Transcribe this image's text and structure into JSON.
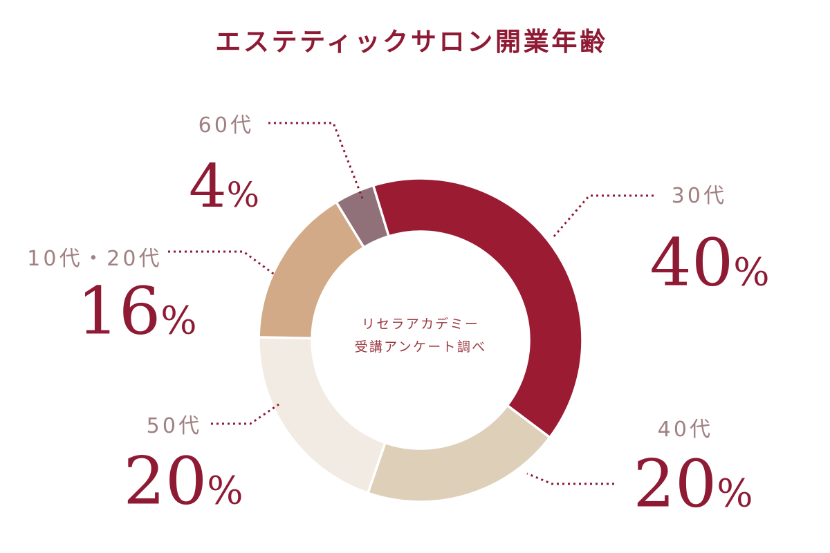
{
  "title": "エステティックサロン開業年齢",
  "center_label": {
    "line1": "リセラアカデミー",
    "line2": "受講アンケート調べ"
  },
  "chart_data": {
    "type": "pie",
    "subtype": "donut",
    "title": "エステティックサロン開業年齢",
    "annotation": "リセラアカデミー 受講アンケート調べ",
    "categories": [
      "30代",
      "40代",
      "50代",
      "10代・20代",
      "60代"
    ],
    "values": [
      40,
      20,
      20,
      16,
      4
    ],
    "unit": "%",
    "colors": [
      "#9B1B33",
      "#DECFB9",
      "#F1EBE3",
      "#D3AA87",
      "#907179"
    ],
    "start_angle_deg": -17,
    "direction": "clockwise",
    "legend_position": "callout-labels",
    "grid": false
  },
  "callouts": {
    "s30": {
      "name": "30代",
      "value": "40",
      "unit": "%"
    },
    "s40": {
      "name": "40代",
      "value": "20",
      "unit": "%"
    },
    "s50": {
      "name": "50代",
      "value": "20",
      "unit": "%"
    },
    "s1020": {
      "name": "10代・20代",
      "value": "16",
      "unit": "%"
    },
    "s60": {
      "name": "60代",
      "value": "4",
      "unit": "%"
    }
  },
  "style": {
    "accent_red": "#8E1A34",
    "label_gray": "#A08082",
    "center_text_red": "#9B3840",
    "background": "#FFFFFF",
    "segment_gap_color": "#FFFFFF"
  }
}
